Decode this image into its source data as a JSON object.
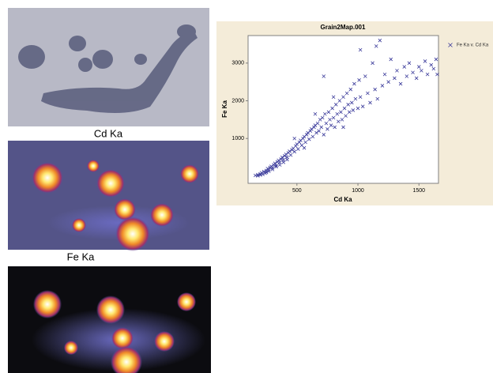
{
  "image_captions": [
    "Cd Ka",
    "Fe Ka"
  ],
  "chart_data": {
    "type": "scatter",
    "title": "Grain2Map.001",
    "x_label": "Cd Ka",
    "y_label": "Fe Ka",
    "xlim": [
      100,
      1660
    ],
    "ylim": [
      -190,
      3730
    ],
    "xticks": [
      500,
      1000,
      1500
    ],
    "yticks": [
      1000,
      2000,
      3000
    ],
    "grid": false,
    "legend": "right",
    "series": [
      {
        "name": "Fe Ka v. Cd Ka",
        "color": "#3a3a9a",
        "x": [
          160,
          180,
          200,
          210,
          230,
          240,
          250,
          260,
          270,
          280,
          290,
          300,
          310,
          320,
          330,
          340,
          350,
          360,
          370,
          380,
          390,
          400,
          410,
          420,
          430,
          440,
          450,
          460,
          470,
          480,
          490,
          500,
          510,
          520,
          530,
          540,
          550,
          560,
          570,
          580,
          590,
          600,
          610,
          620,
          630,
          640,
          650,
          660,
          670,
          680,
          690,
          700,
          710,
          720,
          730,
          740,
          750,
          760,
          770,
          780,
          790,
          800,
          810,
          820,
          830,
          840,
          850,
          860,
          870,
          880,
          890,
          900,
          910,
          920,
          930,
          940,
          950,
          960,
          970,
          980,
          1000,
          1010,
          1020,
          1040,
          1060,
          1080,
          1100,
          1120,
          1140,
          1160,
          1180,
          1200,
          1220,
          1250,
          1270,
          1300,
          1320,
          1350,
          1380,
          1400,
          1420,
          1450,
          1480,
          1500,
          1520,
          1550,
          1570,
          1600,
          1620,
          1640,
          1650,
          720,
          800,
          650,
          1020,
          1150,
          880,
          560,
          480,
          180,
          200,
          220,
          250,
          270,
          300,
          330,
          360,
          390,
          420
        ],
        "y": [
          20,
          40,
          60,
          90,
          120,
          80,
          150,
          200,
          170,
          230,
          260,
          220,
          300,
          340,
          280,
          380,
          420,
          360,
          450,
          500,
          430,
          540,
          580,
          500,
          620,
          660,
          560,
          700,
          740,
          650,
          800,
          850,
          720,
          900,
          950,
          820,
          1000,
          1050,
          900,
          1100,
          1150,
          980,
          1200,
          1250,
          1050,
          1300,
          1350,
          1150,
          1400,
          1200,
          1500,
          1300,
          1550,
          1100,
          1650,
          1400,
          1250,
          1700,
          1500,
          1350,
          1800,
          1550,
          1300,
          1900,
          1650,
          1450,
          2000,
          1700,
          1500,
          2100,
          1800,
          1600,
          2200,
          1900,
          1700,
          2300,
          1950,
          1750,
          2450,
          2050,
          1800,
          2550,
          2100,
          1850,
          2650,
          2200,
          1950,
          3000,
          2300,
          2050,
          3600,
          2400,
          2700,
          2500,
          3100,
          2600,
          2800,
          2450,
          2900,
          2650,
          3000,
          2750,
          2600,
          2900,
          2800,
          3050,
          2700,
          2950,
          2850,
          3100,
          2700,
          2650,
          2100,
          1650,
          3350,
          3450,
          1300,
          750,
          1000,
          10,
          30,
          50,
          100,
          130,
          180,
          250,
          300,
          370,
          440
        ]
      }
    ]
  }
}
